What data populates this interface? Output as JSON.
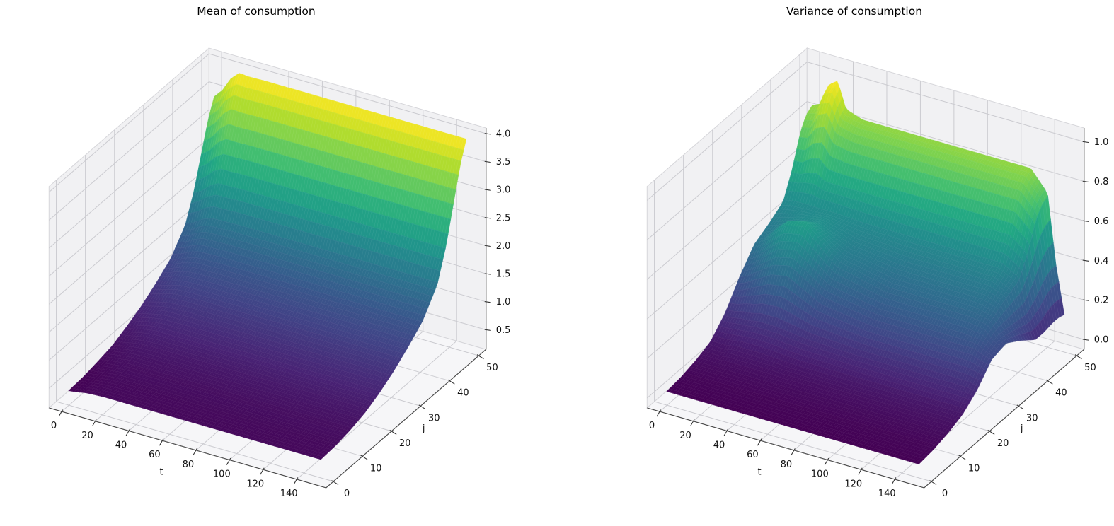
{
  "figure": {
    "background": "#ffffff",
    "text_color": "#000000"
  },
  "chart_data": [
    {
      "type": "surface",
      "title": "Mean of consumption",
      "xlabel": "t",
      "ylabel": "j",
      "colormap": "viridis",
      "view": {
        "elev": 30,
        "azim": -60
      },
      "xlim": [
        -7.5,
        157.5
      ],
      "ylim": [
        -2.5,
        52.5
      ],
      "zlim": [
        0.15,
        4.1
      ],
      "xticks": [
        0,
        20,
        40,
        60,
        80,
        100,
        120,
        140
      ],
      "yticks": [
        0,
        10,
        20,
        30,
        40,
        50
      ],
      "zticks": [
        "0.5",
        "1.0",
        "1.5",
        "2.0",
        "2.5",
        "3.0",
        "3.5",
        "4.0"
      ],
      "x": [
        0,
        5,
        10,
        15,
        20,
        30,
        50,
        80,
        110,
        130,
        140,
        145,
        150
      ],
      "y": [
        0,
        5,
        10,
        15,
        20,
        25,
        30,
        35,
        40,
        43,
        46,
        48,
        50
      ],
      "z": [
        [
          0.41,
          0.43,
          0.46,
          0.47,
          0.48,
          0.48,
          0.48,
          0.48,
          0.48,
          0.48,
          0.48,
          0.48,
          0.48
        ],
        [
          0.43,
          0.45,
          0.47,
          0.49,
          0.5,
          0.5,
          0.5,
          0.5,
          0.5,
          0.5,
          0.5,
          0.5,
          0.5
        ],
        [
          0.48,
          0.5,
          0.52,
          0.54,
          0.55,
          0.55,
          0.55,
          0.55,
          0.55,
          0.55,
          0.55,
          0.55,
          0.55
        ],
        [
          0.54,
          0.57,
          0.6,
          0.62,
          0.63,
          0.63,
          0.63,
          0.63,
          0.63,
          0.63,
          0.63,
          0.63,
          0.63
        ],
        [
          0.66,
          0.68,
          0.72,
          0.75,
          0.76,
          0.76,
          0.76,
          0.76,
          0.76,
          0.76,
          0.76,
          0.76,
          0.76
        ],
        [
          0.8,
          0.84,
          0.88,
          0.91,
          0.92,
          0.93,
          0.93,
          0.93,
          0.93,
          0.93,
          0.93,
          0.93,
          0.93
        ],
        [
          0.98,
          1.03,
          1.08,
          1.12,
          1.13,
          1.14,
          1.14,
          1.14,
          1.14,
          1.14,
          1.14,
          1.14,
          1.14
        ],
        [
          1.19,
          1.24,
          1.31,
          1.36,
          1.37,
          1.38,
          1.38,
          1.38,
          1.38,
          1.38,
          1.38,
          1.38,
          1.38
        ],
        [
          1.56,
          1.62,
          1.72,
          1.78,
          1.79,
          1.8,
          1.8,
          1.8,
          1.8,
          1.8,
          1.8,
          1.8,
          1.8
        ],
        [
          2.03,
          2.12,
          2.26,
          2.34,
          2.34,
          2.35,
          2.35,
          2.35,
          2.35,
          2.35,
          2.35,
          2.35,
          2.35
        ],
        [
          2.68,
          2.8,
          2.99,
          3.1,
          3.09,
          3.1,
          3.1,
          3.1,
          3.1,
          3.1,
          3.1,
          3.1,
          3.1
        ],
        [
          3.11,
          3.25,
          3.47,
          3.61,
          3.59,
          3.6,
          3.6,
          3.6,
          3.6,
          3.6,
          3.6,
          3.6,
          3.6
        ],
        [
          3.41,
          3.57,
          3.82,
          3.96,
          3.94,
          3.95,
          3.95,
          3.95,
          3.95,
          3.95,
          3.95,
          3.95,
          3.95
        ]
      ]
    },
    {
      "type": "surface",
      "title": "Variance of consumption",
      "xlabel": "t",
      "ylabel": "j",
      "colormap": "viridis",
      "view": {
        "elev": 30,
        "azim": -60
      },
      "xlim": [
        -7.5,
        157.5
      ],
      "ylim": [
        -2.5,
        52.5
      ],
      "zlim": [
        -0.05,
        1.07
      ],
      "xticks": [
        0,
        20,
        40,
        60,
        80,
        100,
        120,
        140
      ],
      "yticks": [
        0,
        10,
        20,
        30,
        40,
        50
      ],
      "zticks": [
        "0.0",
        "0.2",
        "0.4",
        "0.6",
        "0.8",
        "1.0"
      ],
      "x": [
        0,
        5,
        10,
        15,
        20,
        30,
        50,
        80,
        110,
        130,
        140,
        145,
        150
      ],
      "y": [
        0,
        5,
        10,
        15,
        20,
        25,
        30,
        35,
        40,
        43,
        46,
        48,
        50
      ],
      "z": [
        [
          0.02,
          0.02,
          0.02,
          0.02,
          0.02,
          0.02,
          0.02,
          0.02,
          0.02,
          0.02,
          0.02,
          0.02,
          0.02
        ],
        [
          0.03,
          0.03,
          0.03,
          0.03,
          0.03,
          0.03,
          0.03,
          0.03,
          0.03,
          0.03,
          0.03,
          0.03,
          0.03
        ],
        [
          0.05,
          0.05,
          0.05,
          0.05,
          0.05,
          0.05,
          0.05,
          0.05,
          0.05,
          0.05,
          0.05,
          0.05,
          0.05
        ],
        [
          0.08,
          0.08,
          0.08,
          0.09,
          0.09,
          0.09,
          0.08,
          0.08,
          0.08,
          0.08,
          0.08,
          0.08,
          0.08
        ],
        [
          0.16,
          0.16,
          0.17,
          0.17,
          0.18,
          0.18,
          0.16,
          0.15,
          0.15,
          0.15,
          0.15,
          0.15,
          0.14
        ],
        [
          0.28,
          0.3,
          0.33,
          0.36,
          0.39,
          0.41,
          0.3,
          0.26,
          0.26,
          0.26,
          0.26,
          0.24,
          0.23
        ],
        [
          0.38,
          0.41,
          0.46,
          0.51,
          0.55,
          0.57,
          0.41,
          0.35,
          0.35,
          0.35,
          0.33,
          0.28,
          0.25
        ],
        [
          0.42,
          0.43,
          0.45,
          0.47,
          0.48,
          0.5,
          0.44,
          0.41,
          0.41,
          0.41,
          0.38,
          0.27,
          0.2
        ],
        [
          0.47,
          0.48,
          0.48,
          0.48,
          0.48,
          0.48,
          0.47,
          0.47,
          0.47,
          0.47,
          0.42,
          0.26,
          0.14
        ],
        [
          0.59,
          0.59,
          0.61,
          0.62,
          0.59,
          0.59,
          0.59,
          0.59,
          0.59,
          0.59,
          0.52,
          0.3,
          0.14
        ],
        [
          0.75,
          0.76,
          0.83,
          0.85,
          0.77,
          0.75,
          0.75,
          0.75,
          0.75,
          0.75,
          0.66,
          0.36,
          0.15
        ],
        [
          0.81,
          0.82,
          0.93,
          0.95,
          0.83,
          0.81,
          0.81,
          0.81,
          0.81,
          0.81,
          0.71,
          0.38,
          0.15
        ],
        [
          0.83,
          0.85,
          0.96,
          0.99,
          0.86,
          0.83,
          0.83,
          0.83,
          0.83,
          0.83,
          0.73,
          0.38,
          0.14
        ]
      ]
    }
  ],
  "palette": {
    "viridis_stops": [
      "#440154",
      "#482475",
      "#414487",
      "#355f8d",
      "#2a788e",
      "#21918c",
      "#22a884",
      "#44bf70",
      "#7ad151",
      "#bddf26",
      "#fde725"
    ],
    "pane_wall": "#f1f1f3",
    "pane_floor": "#f6f6f8",
    "grid_line": "#cbcbd0",
    "pane_edge": "#d6d6da",
    "axis_line": "#4c4c4c",
    "tick_text": "#111111",
    "mesh_hatch": "rgba(255,255,255,0.11)"
  }
}
